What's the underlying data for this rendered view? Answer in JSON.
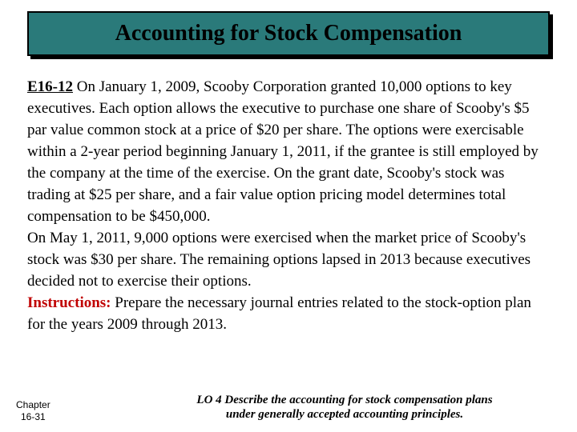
{
  "header": {
    "title": "Accounting for Stock Compensation",
    "bg_color": "#2a7a7a",
    "border_color": "#000000",
    "shadow_color": "#000000",
    "title_color": "#000000",
    "title_fontsize": 28
  },
  "body": {
    "label": "E16-12",
    "text1": " On January 1, 2009, Scooby Corporation granted 10,000 options to key executives. Each option allows the executive to purchase one share of Scooby's $5 par value common stock at a price of $20 per share.  The options were exercisable within a 2-year period beginning January 1, 2011, if the grantee is still employed by the company at the time of the exercise. On the grant date, Scooby's stock was trading at $25 per share, and a fair value option pricing model determines total compensation to be $450,000.",
    "text2": "On May 1, 2011, 9,000 options were exercised when the market price of Scooby's stock was $30 per share. The remaining options lapsed in 2013 because executives decided not to exercise their options.",
    "instructions_label": "Instructions:",
    "instructions_text": " Prepare the necessary journal entries related to the stock-option plan for the years 2009 through 2013.",
    "fontsize": 19,
    "label_color": "#000000",
    "instructions_color": "#c00000"
  },
  "footer": {
    "chapter_line1": "Chapter",
    "chapter_line2": "16-31",
    "lo_line1": "LO 4 Describe the accounting for stock compensation plans",
    "lo_line2": "under generally accepted accounting principles.",
    "chapter_fontsize": 12,
    "lo_fontsize": 15
  }
}
